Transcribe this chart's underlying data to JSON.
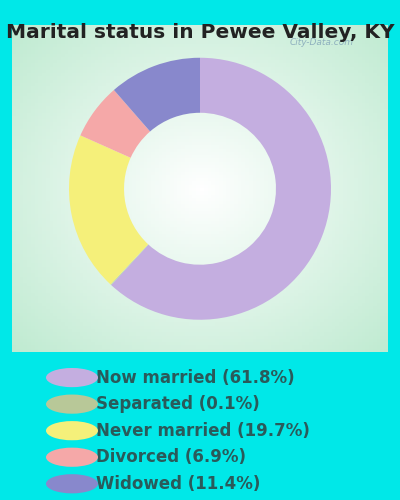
{
  "title": "Marital status in Pewee Valley, KY",
  "slices": [
    61.8,
    0.1,
    19.7,
    6.9,
    11.4
  ],
  "labels": [
    "Now married (61.8%)",
    "Separated (0.1%)",
    "Never married (19.7%)",
    "Divorced (6.9%)",
    "Widowed (11.4%)"
  ],
  "colors": [
    "#c4aee0",
    "#b8d4a8",
    "#f5f07a",
    "#f5a8a8",
    "#8888cc"
  ],
  "legend_colors": [
    "#c4aee0",
    "#b8c898",
    "#f5f07a",
    "#f5a8a8",
    "#8888cc"
  ],
  "bg_color_outer": "#00e8e8",
  "chart_bg_light": "#f0f8f0",
  "chart_bg_dark": "#c8e8d0",
  "text_color": "#2a5a5a",
  "title_color": "#222222",
  "watermark": "City-Data.com",
  "title_fontsize": 14.5,
  "legend_fontsize": 12,
  "donut_width": 0.42,
  "start_angle": 90
}
